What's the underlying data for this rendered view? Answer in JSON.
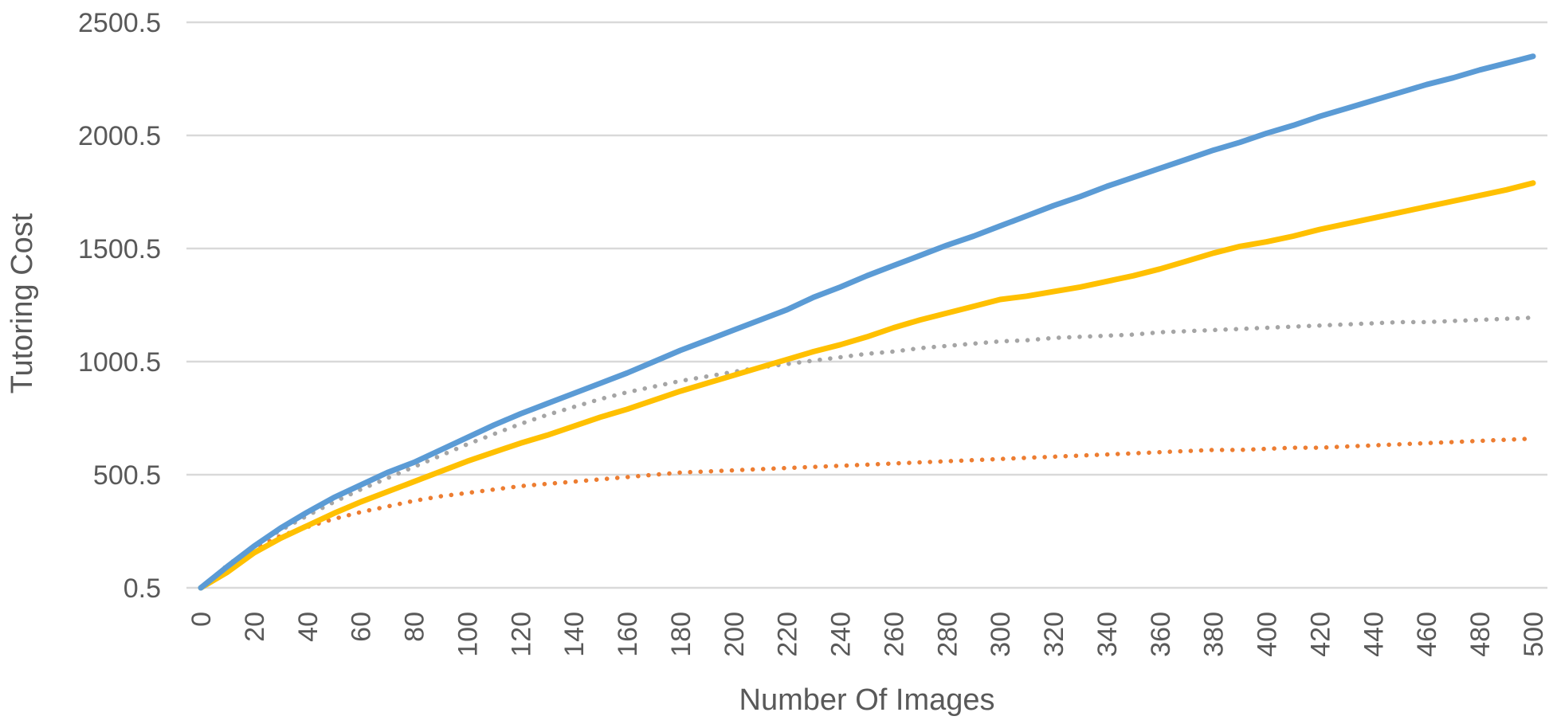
{
  "chart_data": {
    "type": "line",
    "xlabel": "Number Of Images",
    "ylabel": "Tutoring Cost",
    "xlim": [
      0,
      500
    ],
    "ylim": [
      0.5,
      2500.5
    ],
    "y_ticks": [
      "0.5",
      "500.5",
      "1000.5",
      "1500.5",
      "2000.5",
      "2500.5"
    ],
    "x_ticks": [
      "0",
      "20",
      "40",
      "60",
      "80",
      "100",
      "120",
      "140",
      "160",
      "180",
      "200",
      "220",
      "240",
      "260",
      "280",
      "300",
      "320",
      "340",
      "360",
      "380",
      "400",
      "420",
      "440",
      "460",
      "480",
      "500"
    ],
    "grid": true,
    "legend": "none",
    "x": [
      0,
      10,
      20,
      30,
      40,
      50,
      60,
      70,
      80,
      90,
      100,
      110,
      120,
      130,
      140,
      150,
      160,
      170,
      180,
      190,
      200,
      210,
      220,
      230,
      240,
      250,
      260,
      270,
      280,
      290,
      300,
      310,
      320,
      330,
      340,
      350,
      360,
      370,
      380,
      390,
      400,
      410,
      420,
      430,
      440,
      450,
      460,
      470,
      480,
      490,
      500
    ],
    "series": [
      {
        "color": "#5b9bd5",
        "style": "solid",
        "values": [
          0.5,
          95,
          185,
          265,
          335,
          400,
          455,
          510,
          555,
          610,
          665,
          720,
          770,
          815,
          860,
          905,
          950,
          1000,
          1050,
          1095,
          1140,
          1185,
          1230,
          1285,
          1330,
          1380,
          1425,
          1470,
          1515,
          1555,
          1600,
          1645,
          1690,
          1730,
          1775,
          1815,
          1855,
          1895,
          1935,
          1970,
          2010,
          2045,
          2085,
          2120,
          2155,
          2190,
          2225,
          2255,
          2290,
          2320,
          2350
        ]
      },
      {
        "color": "#ffc000",
        "style": "solid",
        "values": [
          0.5,
          70,
          155,
          220,
          275,
          330,
          380,
          425,
          470,
          515,
          560,
          600,
          640,
          675,
          715,
          755,
          790,
          830,
          870,
          905,
          940,
          975,
          1010,
          1045,
          1075,
          1110,
          1150,
          1185,
          1215,
          1245,
          1275,
          1290,
          1310,
          1330,
          1355,
          1380,
          1410,
          1445,
          1480,
          1510,
          1530,
          1555,
          1585,
          1610,
          1635,
          1660,
          1685,
          1710,
          1735,
          1760,
          1790
        ]
      },
      {
        "color": "#a5a5a5",
        "style": "dotted",
        "values": [
          0.5,
          100,
          185,
          255,
          320,
          380,
          435,
          485,
          535,
          585,
          635,
          680,
          725,
          765,
          800,
          835,
          865,
          890,
          915,
          935,
          955,
          975,
          990,
          1005,
          1020,
          1035,
          1045,
          1060,
          1070,
          1080,
          1090,
          1095,
          1105,
          1110,
          1115,
          1120,
          1130,
          1135,
          1140,
          1145,
          1150,
          1155,
          1160,
          1165,
          1170,
          1175,
          1175,
          1180,
          1185,
          1190,
          1195
        ]
      },
      {
        "color": "#ed7d31",
        "style": "dotted",
        "values": [
          0.5,
          95,
          175,
          230,
          270,
          305,
          335,
          360,
          385,
          405,
          420,
          435,
          450,
          460,
          470,
          480,
          490,
          500,
          510,
          515,
          520,
          525,
          530,
          535,
          540,
          545,
          550,
          555,
          560,
          565,
          570,
          575,
          580,
          585,
          590,
          595,
          600,
          605,
          610,
          610,
          615,
          620,
          620,
          625,
          630,
          635,
          640,
          645,
          650,
          655,
          660
        ]
      }
    ]
  }
}
